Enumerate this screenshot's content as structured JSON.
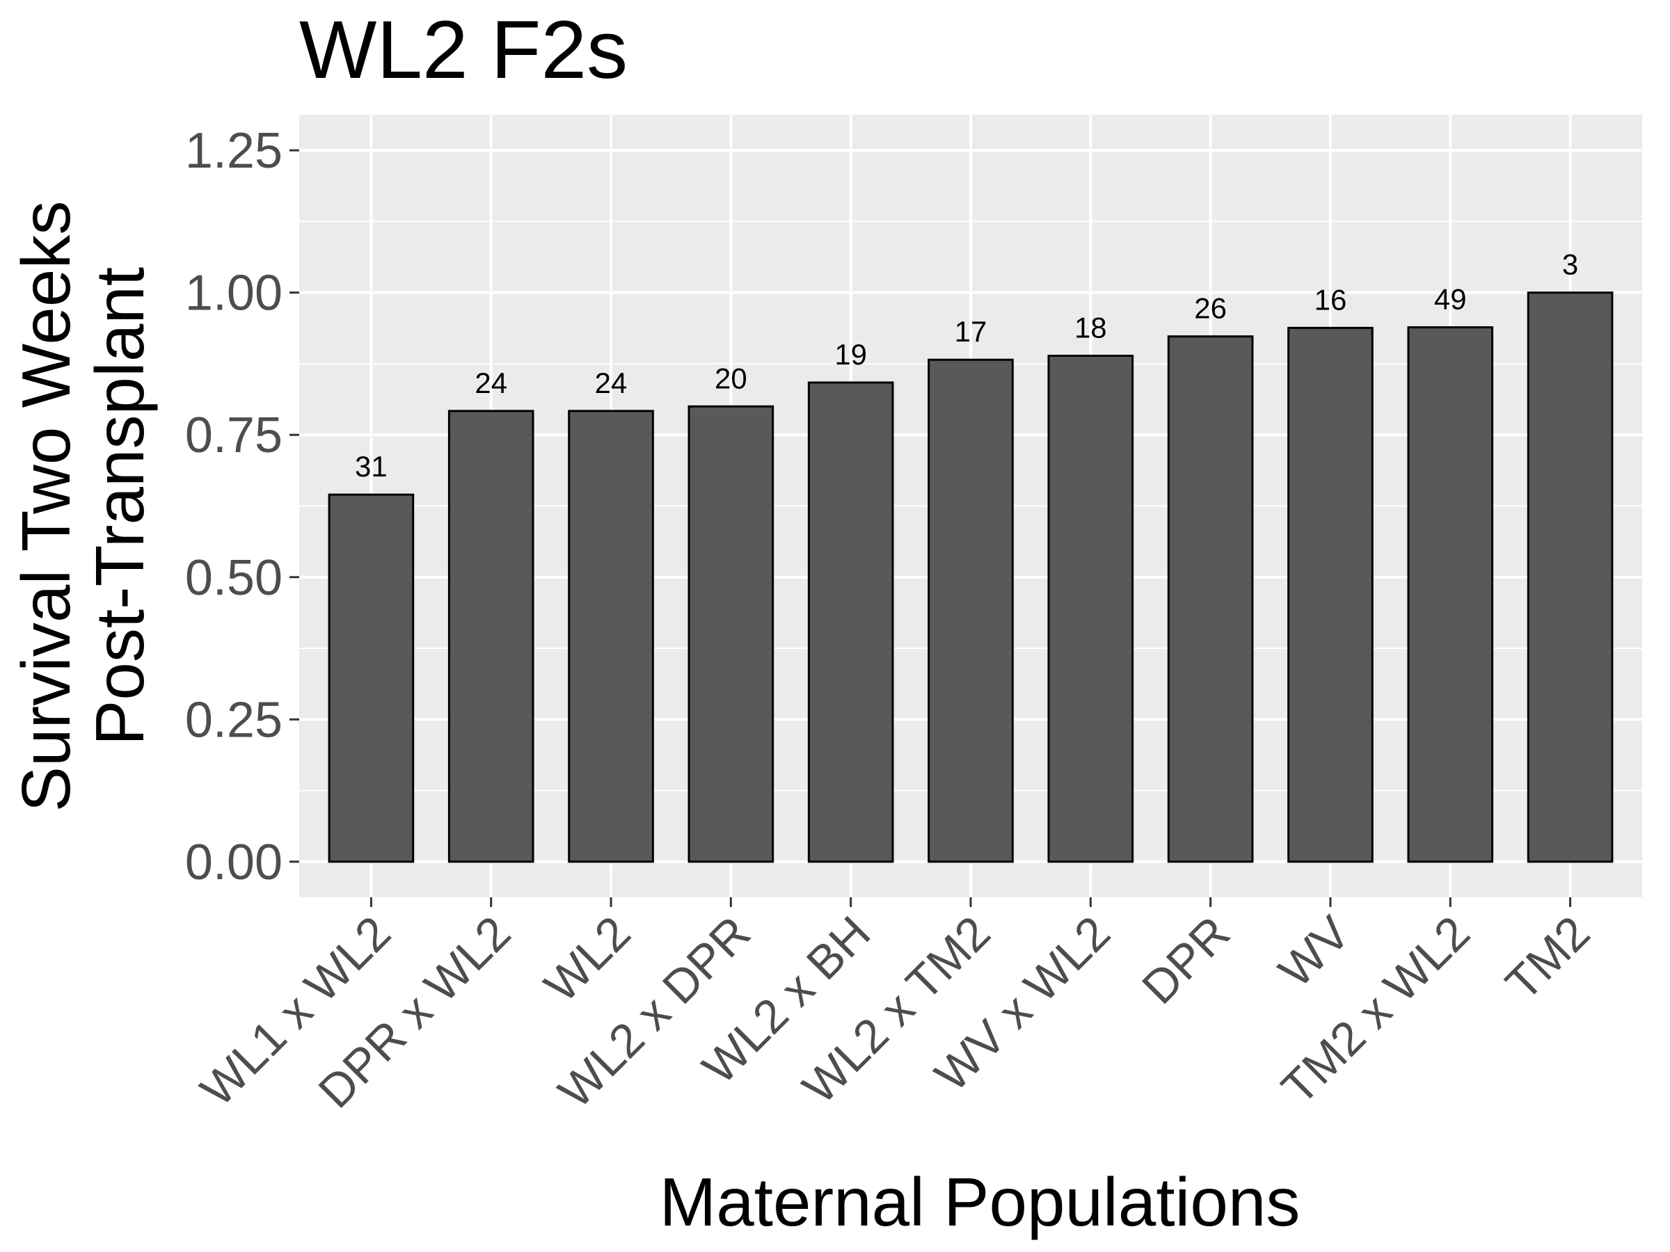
{
  "chart_data": {
    "type": "bar",
    "title": "WL2 F2s",
    "xlabel": "Maternal Populations",
    "ylabel_lines": [
      "Survival Two Weeks",
      "Post-Transplant"
    ],
    "categories": [
      "WL1 x WL2",
      "DPR x WL2",
      "WL2",
      "WL2 x DPR",
      "WL2 x BH",
      "WL2 x TM2",
      "WV x WL2",
      "DPR",
      "WV",
      "TM2 x WL2",
      "TM2"
    ],
    "values": [
      0.645,
      0.792,
      0.792,
      0.8,
      0.842,
      0.882,
      0.889,
      0.923,
      0.938,
      0.939,
      1.0
    ],
    "bar_labels": [
      "31",
      "24",
      "24",
      "20",
      "19",
      "17",
      "18",
      "26",
      "16",
      "49",
      "3"
    ],
    "ylim": [
      -0.0625,
      1.3125
    ],
    "yticks": [
      0,
      0.25,
      0.5,
      0.75,
      1.0,
      1.25
    ],
    "ytick_labels": [
      "0.00",
      "0.25",
      "0.50",
      "0.75",
      "1.00",
      "1.25"
    ],
    "grid": true,
    "colors": {
      "bar_fill": "#595959",
      "bar_stroke": "#000000",
      "panel_bg": "#ebebeb",
      "grid": "#ffffff",
      "tick_text": "#4d4d4d"
    }
  }
}
